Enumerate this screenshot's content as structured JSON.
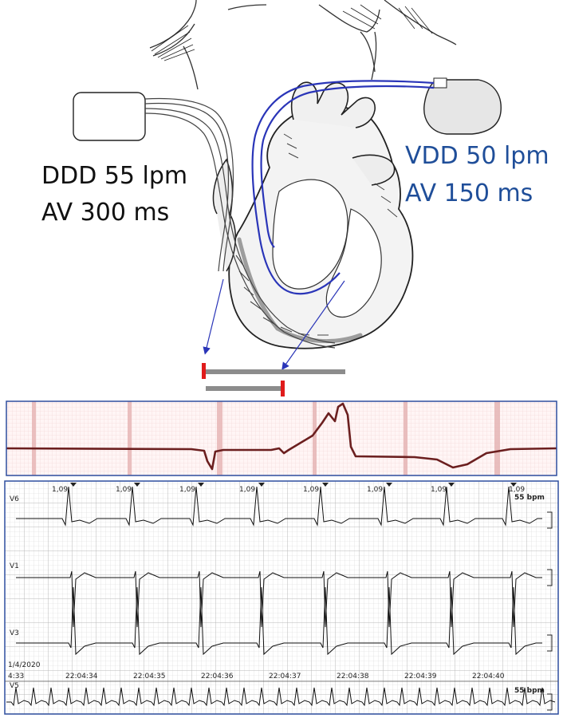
{
  "left_pacemaker": {
    "mode": "DDD 55 lpm",
    "av_delay": "AV 300 ms",
    "color": "#111111"
  },
  "right_pacemaker": {
    "mode": "VDD 50 lpm",
    "av_delay": "AV 150 ms",
    "color": "#1f4e99"
  },
  "timing_bars": {
    "bar_color": "#8c8c8c",
    "marker_color": "#e01b1b"
  },
  "colors": {
    "lead_blue": "#2a35b8",
    "ecg_grid": "#e6b5b5",
    "ecg_trace": "#6b1f1f",
    "panel_border": "#2f4f9f"
  },
  "ecg_strip": {
    "rr_labels": [
      "1,09",
      "1,09",
      "1,09",
      "1,09",
      "1,09",
      "1,09",
      "1,09",
      "1,09"
    ],
    "leads": [
      "V6",
      "V1",
      "V3",
      "V5"
    ],
    "rate_label": "55 bpm",
    "rate_label_bottom": "55 bpm",
    "date": "1/4/2020",
    "time_start": "4:33",
    "times": [
      "22:04:34",
      "22:04:35",
      "22:04:36",
      "22:04:37",
      "22:04:38",
      "22:04:39",
      "22:04:40"
    ]
  }
}
